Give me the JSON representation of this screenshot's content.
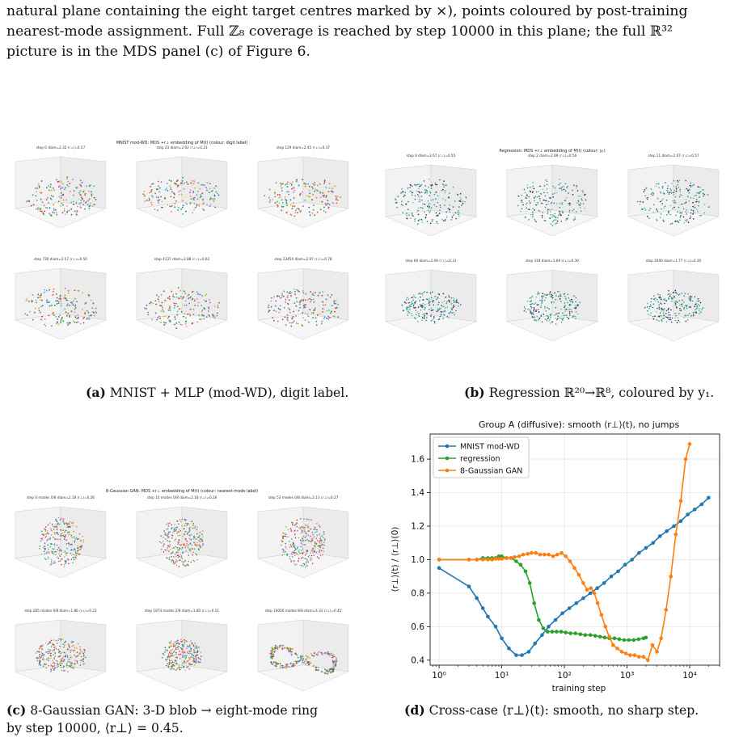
{
  "intro": {
    "line1": "natural plane containing the eight target centres marked by ×), points coloured by post-training",
    "line2": "nearest-mode assignment. Full ℤ₈ coverage is reached by step 10000 in this plane; the full ℝ³²",
    "line3": "picture is in the MDS panel (c) of Figure 6."
  },
  "panel_a": {
    "title": "MNIST mod-WD: MDS +r⊥ embedding of M(t) (colour: digit label)",
    "subplots": [
      "step 0  diam=2.32  ⟨r⊥⟩=0.57",
      "step 23  diam=2.02  ⟨r⊥⟩=0.23",
      "step 129  diam=2.45  ⟨r⊥⟩=0.37",
      "step 730  diam=2.57  ⟨r⊥⟩=0.50",
      "step 4137  diam=2.88  ⟨r⊥⟩=0.62",
      "step 23450  diam=2.97  ⟨r⊥⟩=0.78"
    ],
    "caption_label": "(a)",
    "caption": "MNIST + MLP (mod-WD), digit label."
  },
  "panel_b": {
    "title": "Regression: MDS +r⊥ embedding of M(t) (colour: y₁)",
    "subplots": [
      "step 0  diam=2.67  ⟨r⊥⟩=0.55",
      "step 2  diam=2.69  ⟨r⊥⟩=0.56",
      "step 11  diam=2.67  ⟨r⊥⟩=0.57",
      "step 66  diam=2.09  ⟨r⊥⟩=0.31",
      "step 319  diam=1.66  ⟨r⊥⟩=0.30",
      "step 2000  diam=1.77  ⟨r⊥⟩=0.30"
    ],
    "caption_label": "(b)",
    "caption": "Regression ℝ²⁰→ℝ⁸, coloured by y₁."
  },
  "panel_c": {
    "title": "8-Gaussian GAN: MDS +r⊥ embedding of M(t) (colour: nearest-mode label)",
    "subplots": [
      "step 0  modes 0/8  diam=2.18  ⟨r⊥⟩=0.26",
      "step 10  modes 0/8  diam=2.18  ⟨r⊥⟩=0.26",
      "step 53  modes 0/8  diam=2.13  ⟨r⊥⟩=0.27",
      "step 285  modes 0/8  diam=1.86  ⟨r⊥⟩=0.22",
      "step 1874  modes 2/8  diam=1.80  ⟨r⊥⟩=0.11",
      "step 10000  modes 8/8  diam=4.32  ⟨r⊥⟩=0.45"
    ],
    "caption_label": "(c)",
    "caption_line1": "8-Gaussian GAN: 3-D blob → eight-mode ring",
    "caption_line2": "by step 10000, ⟨r⊥⟩ = 0.45."
  },
  "panel_d": {
    "caption_label": "(d)",
    "caption": "Cross-case ⟨r⊥⟩(t): smooth, no sharp step."
  },
  "chart_data": {
    "type": "line",
    "title": "Group A (diffusive): smooth ⟨r⊥⟩(t), no jumps",
    "xlabel": "training step",
    "ylabel": "⟨r⊥⟩(t) / ⟨r⊥⟩(0)",
    "xscale": "log",
    "xlim": [
      0.72,
      30000
    ],
    "ylim": [
      0.37,
      1.75
    ],
    "xticks": [
      1,
      10,
      100,
      1000,
      10000
    ],
    "xtick_labels": [
      "10⁰",
      "10¹",
      "10²",
      "10³",
      "10⁴"
    ],
    "yticks": [
      0.4,
      0.6,
      0.8,
      1.0,
      1.2,
      1.4,
      1.6
    ],
    "ytick_labels": [
      "0.4",
      "0.6",
      "0.8",
      "1.0",
      "1.2",
      "1.4",
      "1.6"
    ],
    "grid": true,
    "legend": "top-left",
    "series": [
      {
        "name": "MNIST mod-WD",
        "color": "#1f77b4",
        "x": [
          1,
          3,
          4,
          5,
          6,
          8,
          10,
          13,
          17,
          21,
          27,
          34,
          44,
          56,
          72,
          93,
          120,
          155,
          200,
          260,
          335,
          430,
          560,
          720,
          930,
          1200,
          1550,
          2000,
          2600,
          3350,
          4300,
          5600,
          7200,
          9300,
          12000,
          15500,
          20000
        ],
        "y": [
          0.95,
          0.84,
          0.77,
          0.71,
          0.66,
          0.6,
          0.53,
          0.47,
          0.43,
          0.43,
          0.45,
          0.5,
          0.55,
          0.6,
          0.64,
          0.68,
          0.71,
          0.74,
          0.77,
          0.8,
          0.83,
          0.86,
          0.9,
          0.93,
          0.97,
          1.0,
          1.04,
          1.07,
          1.1,
          1.14,
          1.17,
          1.2,
          1.23,
          1.27,
          1.3,
          1.33,
          1.37
        ]
      },
      {
        "name": "regression",
        "color": "#2ca02c",
        "x": [
          1,
          3,
          4,
          5,
          6,
          7,
          8,
          9,
          10,
          12,
          14,
          17,
          20,
          24,
          28,
          33,
          39,
          46,
          54,
          64,
          75,
          89,
          105,
          125,
          150,
          180,
          215,
          260,
          310,
          370,
          440,
          525,
          630,
          750,
          900,
          1070,
          1280,
          1530,
          1830,
          2000
        ],
        "y": [
          1.0,
          1.0,
          1.0,
          1.01,
          1.01,
          1.01,
          1.01,
          1.02,
          1.02,
          1.01,
          1.01,
          0.99,
          0.97,
          0.93,
          0.86,
          0.74,
          0.64,
          0.59,
          0.57,
          0.57,
          0.57,
          0.57,
          0.565,
          0.56,
          0.56,
          0.555,
          0.55,
          0.55,
          0.545,
          0.54,
          0.535,
          0.53,
          0.53,
          0.525,
          0.52,
          0.52,
          0.52,
          0.525,
          0.53,
          0.535
        ]
      },
      {
        "name": "8-Gaussian GAN",
        "color": "#ff7f0e",
        "x": [
          1,
          3,
          4,
          5,
          6,
          7,
          8,
          9,
          10,
          12,
          14,
          16,
          19,
          22,
          26,
          30,
          35,
          41,
          48,
          56,
          66,
          77,
          90,
          105,
          123,
          145,
          170,
          200,
          230,
          265,
          300,
          340,
          390,
          450,
          520,
          600,
          700,
          820,
          960,
          1120,
          1320,
          1550,
          1830,
          2150,
          2550,
          3000,
          3500,
          4200,
          5000,
          6000,
          7200,
          8600,
          10000
        ],
        "y": [
          1.0,
          1.0,
          1.0,
          1.0,
          1.0,
          1.0,
          1.005,
          1.005,
          1.005,
          1.01,
          1.01,
          1.015,
          1.02,
          1.03,
          1.035,
          1.04,
          1.04,
          1.03,
          1.03,
          1.03,
          1.02,
          1.03,
          1.04,
          1.02,
          0.99,
          0.95,
          0.91,
          0.86,
          0.82,
          0.83,
          0.8,
          0.74,
          0.67,
          0.6,
          0.54,
          0.49,
          0.47,
          0.45,
          0.44,
          0.43,
          0.43,
          0.42,
          0.42,
          0.4,
          0.49,
          0.45,
          0.53,
          0.7,
          0.9,
          1.15,
          1.35,
          1.6,
          1.69
        ]
      }
    ]
  }
}
